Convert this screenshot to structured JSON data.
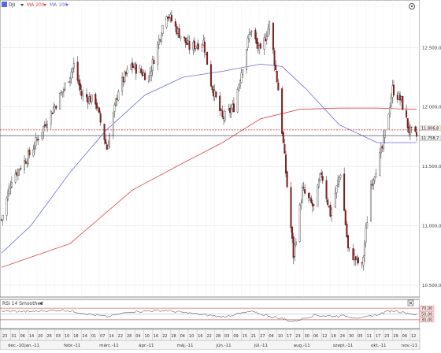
{
  "header": {
    "symbol": "DJI",
    "ma200_label": "MA 200",
    "ma100_label": "MA 100",
    "ma200_color": "#d44a4a",
    "ma100_color": "#6b6bd6",
    "settings_icon": "gear-icon",
    "close_icon": "close-icon"
  },
  "rsi_panel": {
    "title": "RSI 14 Smoothed",
    "levels": [
      "70,00",
      "50,00",
      "30,00"
    ]
  },
  "x_axis": {
    "date_labels": [
      "23",
      "31",
      "06",
      "14",
      "20",
      "26",
      "03",
      "10",
      "18",
      "24",
      "01",
      "07",
      "14",
      "22",
      "28",
      "04",
      "10",
      "16",
      "22",
      "28",
      "04",
      "10",
      "16",
      "22",
      "28",
      "03",
      "09",
      "15",
      "21",
      "27",
      "04",
      "10",
      "17",
      "23",
      "30",
      "06",
      "12",
      "18",
      "24",
      "30",
      "05",
      "11",
      "17",
      "23",
      "29",
      "06",
      "12",
      "18",
      "25",
      "01",
      "07",
      "13",
      "19",
      "26",
      "01",
      "07",
      "14",
      "20",
      "26",
      "03",
      "09",
      "15"
    ],
    "month_labels": [
      "dec.-10",
      "jan.-11",
      "febr.-11",
      "márc.-11",
      "ápr.-11",
      "máj.-11",
      "jún.-11",
      "júl.-11",
      "aug.-11",
      "szept.-11",
      "okt.-11",
      "nov.-11"
    ]
  },
  "chart_data": {
    "type": "candlestick",
    "title": "",
    "series": [
      {
        "name": "DJI",
        "kind": "ohlc"
      },
      {
        "name": "MA 200",
        "kind": "line",
        "color": "#d44a4a"
      },
      {
        "name": "MA 100",
        "kind": "line",
        "color": "#6b6bd6"
      }
    ],
    "x_range": [
      "2010-12-23",
      "2011-11-15"
    ],
    "y_range": [
      10400,
      12900
    ],
    "y_ticks": [
      10500,
      11000,
      11500,
      12000,
      12500
    ],
    "y_tick_labels": [
      "10.500,0",
      "11.000,0",
      "11.500,0",
      "12.000,0",
      "12.500,0"
    ],
    "price_path": [
      [
        "2010-12-23",
        11050
      ],
      [
        "2010-12-31",
        11400
      ],
      [
        "2011-01-14",
        11600
      ],
      [
        "2011-01-26",
        11850
      ],
      [
        "2011-02-10",
        12150
      ],
      [
        "2011-02-18",
        12350
      ],
      [
        "2011-02-24",
        12100
      ],
      [
        "2011-03-07",
        12050
      ],
      [
        "2011-03-16",
        11650
      ],
      [
        "2011-03-25",
        12150
      ],
      [
        "2011-04-04",
        12350
      ],
      [
        "2011-04-18",
        12250
      ],
      [
        "2011-05-02",
        12800
      ],
      [
        "2011-05-10",
        12650
      ],
      [
        "2011-05-20",
        12500
      ],
      [
        "2011-05-31",
        12550
      ],
      [
        "2011-06-06",
        12200
      ],
      [
        "2011-06-15",
        11900
      ],
      [
        "2011-06-24",
        12000
      ],
      [
        "2011-07-07",
        12650
      ],
      [
        "2011-07-15",
        12450
      ],
      [
        "2011-07-22",
        12700
      ],
      [
        "2011-07-29",
        12150
      ],
      [
        "2011-08-04",
        11450
      ],
      [
        "2011-08-10",
        10750
      ],
      [
        "2011-08-17",
        11300
      ],
      [
        "2011-08-26",
        11150
      ],
      [
        "2011-09-01",
        11450
      ],
      [
        "2011-09-08",
        11100
      ],
      [
        "2011-09-16",
        11450
      ],
      [
        "2011-09-22",
        10800
      ],
      [
        "2011-10-03",
        10650
      ],
      [
        "2011-10-10",
        11350
      ],
      [
        "2011-10-19",
        11650
      ],
      [
        "2011-10-27",
        12150
      ],
      [
        "2011-11-03",
        12050
      ],
      [
        "2011-11-09",
        11800
      ],
      [
        "2011-11-15",
        11750
      ]
    ],
    "ma200": [
      [
        "2010-12-23",
        10650
      ],
      [
        "2011-02-15",
        10850
      ],
      [
        "2011-04-05",
        11300
      ],
      [
        "2011-05-10",
        11500
      ],
      [
        "2011-06-15",
        11700
      ],
      [
        "2011-07-15",
        11900
      ],
      [
        "2011-08-15",
        11980
      ],
      [
        "2011-09-15",
        11990
      ],
      [
        "2011-10-15",
        11990
      ],
      [
        "2011-11-15",
        11980
      ]
    ],
    "ma100": [
      [
        "2010-12-23",
        10770
      ],
      [
        "2011-01-15",
        11000
      ],
      [
        "2011-02-15",
        11450
      ],
      [
        "2011-03-15",
        11800
      ],
      [
        "2011-04-15",
        12100
      ],
      [
        "2011-05-15",
        12250
      ],
      [
        "2011-06-15",
        12300
      ],
      [
        "2011-07-15",
        12360
      ],
      [
        "2011-08-01",
        12340
      ],
      [
        "2011-08-20",
        12150
      ],
      [
        "2011-09-15",
        11850
      ],
      [
        "2011-10-15",
        11700
      ],
      [
        "2011-11-15",
        11700
      ]
    ],
    "reference_lines": [
      11806.8,
      11758.7
    ],
    "reference_labels": [
      "11.806,8",
      "11.758,7"
    ],
    "rsi": {
      "name": "RSI 14 Smoothed",
      "levels": [
        70,
        50,
        30
      ],
      "path": [
        [
          "2010-12-23",
          60
        ],
        [
          "2011-01-10",
          58
        ],
        [
          "2011-02-10",
          64
        ],
        [
          "2011-03-16",
          40
        ],
        [
          "2011-04-04",
          58
        ],
        [
          "2011-05-02",
          62
        ],
        [
          "2011-06-15",
          40
        ],
        [
          "2011-07-07",
          58
        ],
        [
          "2011-08-10",
          25
        ],
        [
          "2011-08-26",
          45
        ],
        [
          "2011-09-22",
          42
        ],
        [
          "2011-10-03",
          35
        ],
        [
          "2011-10-27",
          62
        ],
        [
          "2011-11-15",
          48
        ]
      ]
    }
  }
}
